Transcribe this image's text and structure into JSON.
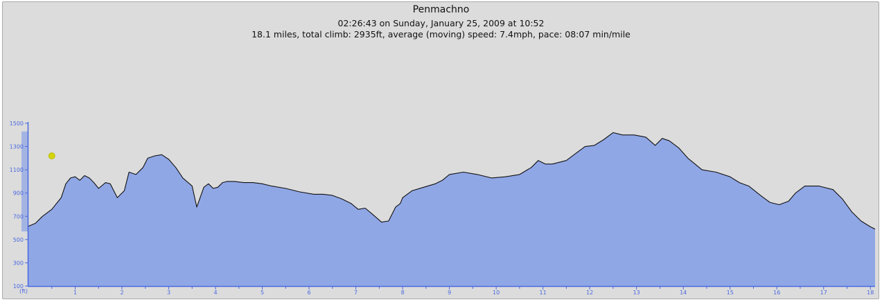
{
  "header": {
    "title": "Penmachno",
    "subtitle": "02:26:43 on Sunday, January 25, 2009 at 10:52",
    "stats": "18.1 miles, total climb: 2935ft, average (moving) speed: 7.4mph, pace: 08:07 min/mile"
  },
  "colors": {
    "fill": "#90a7e6",
    "line": "#111111",
    "axis": "#4a68e0",
    "marker": "#d4d40a"
  },
  "chart_data": {
    "type": "area",
    "title": "",
    "xlabel": "",
    "ylabel": "(ft)",
    "x_unit": "miles",
    "y_unit": "ft",
    "xlim": [
      0,
      18.1
    ],
    "ylim": [
      100,
      1500
    ],
    "x_ticks": [
      1,
      2,
      3,
      4,
      5,
      6,
      7,
      8,
      9,
      10,
      11,
      12,
      13,
      14,
      15,
      16,
      17,
      18
    ],
    "y_ticks": [
      100,
      300,
      500,
      700,
      900,
      1100,
      1300,
      1500
    ],
    "y_range_indicator": [
      570,
      1430
    ],
    "grid": false,
    "legend": "none",
    "marker_position": {
      "x": 0.5,
      "y": 1220
    },
    "series": [
      {
        "x": [
          0,
          0.15,
          0.3,
          0.5,
          0.7,
          0.8,
          0.9,
          1.0,
          1.1,
          1.2,
          1.3,
          1.4,
          1.5,
          1.65,
          1.75,
          1.9,
          2.05,
          2.15,
          2.3,
          2.45,
          2.55,
          2.7,
          2.85,
          3.0,
          3.15,
          3.3,
          3.5,
          3.6,
          3.75,
          3.85,
          3.95,
          4.05,
          4.15,
          4.25,
          4.4,
          4.6,
          4.8,
          5.0,
          5.2,
          5.5,
          5.8,
          6.1,
          6.3,
          6.5,
          6.7,
          6.9,
          7.05,
          7.2,
          7.35,
          7.55,
          7.7,
          7.85,
          7.95,
          8.0,
          8.2,
          8.45,
          8.7,
          8.85,
          9.0,
          9.3,
          9.6,
          9.9,
          10.2,
          10.5,
          10.75,
          10.9,
          11.05,
          11.2,
          11.5,
          11.7,
          11.9,
          12.1,
          12.3,
          12.5,
          12.7,
          12.95,
          13.2,
          13.4,
          13.55,
          13.7,
          13.9,
          14.1,
          14.4,
          14.7,
          15.0,
          15.2,
          15.4,
          15.65,
          15.85,
          16.05,
          16.25,
          16.4,
          16.6,
          16.9,
          17.2,
          17.4,
          17.6,
          17.8,
          18.0,
          18.1
        ],
        "y": [
          615,
          640,
          700,
          760,
          860,
          980,
          1030,
          1040,
          1010,
          1050,
          1030,
          990,
          940,
          990,
          980,
          860,
          920,
          1080,
          1060,
          1120,
          1200,
          1220,
          1230,
          1190,
          1120,
          1030,
          960,
          780,
          950,
          980,
          940,
          950,
          990,
          1000,
          1000,
          990,
          990,
          980,
          960,
          940,
          910,
          890,
          890,
          880,
          850,
          810,
          760,
          770,
          720,
          650,
          660,
          780,
          810,
          860,
          920,
          950,
          980,
          1010,
          1060,
          1080,
          1060,
          1030,
          1040,
          1060,
          1120,
          1180,
          1150,
          1150,
          1180,
          1240,
          1300,
          1310,
          1360,
          1420,
          1400,
          1400,
          1380,
          1310,
          1370,
          1350,
          1290,
          1200,
          1100,
          1080,
          1040,
          990,
          960,
          880,
          820,
          800,
          830,
          900,
          960,
          960,
          930,
          850,
          740,
          660,
          610,
          590
        ]
      }
    ]
  }
}
